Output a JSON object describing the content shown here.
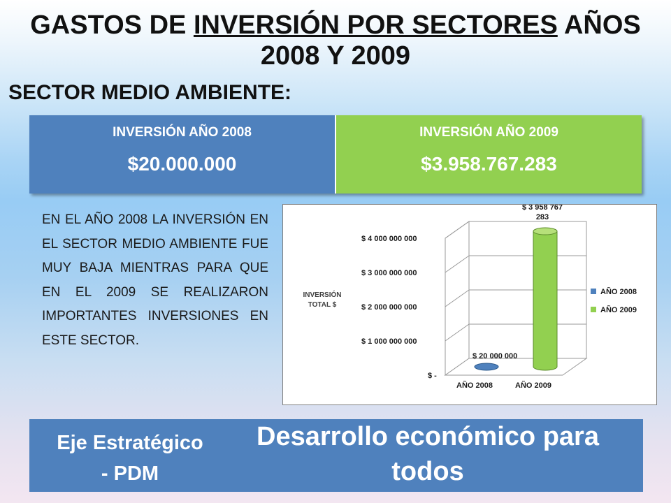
{
  "title": {
    "part1": "GASTOS DE ",
    "part2": "INVERSIÓN POR SECTORES",
    "part3": " AÑOS",
    "line2": "2008 Y 2009"
  },
  "subtitle": "SECTOR MEDIO AMBIENTE:",
  "investment_table": {
    "col2008_header": "INVERSIÓN AÑO 2008",
    "col2008_value": "$20.000.000",
    "col2009_header": "INVERSIÓN AÑO 2009",
    "col2009_value": "$3.958.767.283",
    "colors": {
      "c2008": "#4f81bd",
      "c2009": "#92d050"
    }
  },
  "description": "EN EL AÑO 2008 LA INVERSIÓN EN EL SECTOR MEDIO AMBIENTE FUE MUY BAJA MIENTRAS PARA QUE EN EL 2009 SE REALIZARON IMPORTANTES INVERSIONES EN ESTE SECTOR.",
  "chart_data": {
    "type": "bar",
    "style": "3d-cylinder",
    "categories": [
      "AÑO 2008",
      "AÑO 2009"
    ],
    "series": [
      {
        "name": "AÑO 2008",
        "values": [
          20000000,
          null
        ],
        "color": "#4f81bd",
        "label": "$ 20 000 000"
      },
      {
        "name": "AÑO 2009",
        "values": [
          null,
          3958767283
        ],
        "color": "#92d050",
        "label": "$ 3 958 767 283"
      }
    ],
    "ylabel": "INVERSIÓN TOTAL $",
    "ylim": [
      0,
      4000000000
    ],
    "yticks": [
      {
        "value": 0,
        "label": "$ -"
      },
      {
        "value": 1000000000,
        "label": "$ 1 000 000 000"
      },
      {
        "value": 2000000000,
        "label": "$ 2 000 000 000"
      },
      {
        "value": 3000000000,
        "label": "$ 3 000 000 000"
      },
      {
        "value": 4000000000,
        "label": "$ 4 000 000 000"
      }
    ],
    "grid": true,
    "legend_position": "right"
  },
  "footer": {
    "eje_line1": "Eje Estratégico",
    "eje_line2": "- PDM",
    "desarrollo_line1": "Desarrollo económico para",
    "desarrollo_line2": "todos"
  }
}
